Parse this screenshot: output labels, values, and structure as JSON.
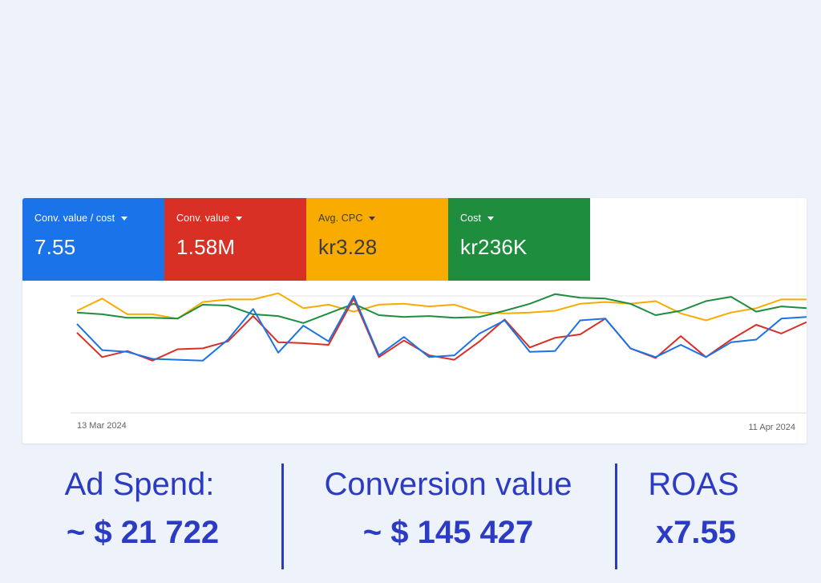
{
  "metrics": [
    {
      "label": "Conv. value / cost",
      "value": "7.55",
      "color": "#1a73e8"
    },
    {
      "label": "Conv. value",
      "value": "1.58M",
      "color": "#d93025"
    },
    {
      "label": "Avg. CPC",
      "value": "kr3.28",
      "color": "#f9ab00"
    },
    {
      "label": "Cost",
      "value": "kr236K",
      "color": "#1e8e3e"
    }
  ],
  "chart_data": {
    "type": "line",
    "title": "",
    "x_start_label": "13 Mar 2024",
    "x_end_label": "11 Apr 2024",
    "x": [
      1,
      2,
      3,
      4,
      5,
      6,
      7,
      8,
      9,
      10,
      11,
      12,
      13,
      14,
      15,
      16,
      17,
      18,
      19,
      20,
      21,
      22,
      23,
      24,
      25,
      26,
      27,
      28,
      29,
      30
    ],
    "ylim": [
      0,
      100
    ],
    "grid": true,
    "series": [
      {
        "name": "Conv. value / cost",
        "color": "#1a73e8",
        "values": [
          68,
          38,
          36,
          28,
          27,
          26,
          50,
          85,
          35,
          66,
          48,
          100,
          32,
          53,
          30,
          32,
          57,
          72,
          36,
          37,
          72,
          74,
          40,
          30,
          44,
          30,
          47,
          50,
          74,
          76
        ]
      },
      {
        "name": "Conv. value",
        "color": "#d93025",
        "values": [
          58,
          30,
          37,
          26,
          39,
          40,
          48,
          77,
          47,
          46,
          44,
          97,
          30,
          49,
          32,
          27,
          48,
          73,
          41,
          52,
          56,
          74,
          40,
          29,
          54,
          30,
          50,
          67,
          57,
          70
        ]
      },
      {
        "name": "Avg. CPC",
        "color": "#f9ab00",
        "values": [
          83,
          97,
          79,
          79,
          74,
          93,
          96,
          96,
          103,
          86,
          90,
          82,
          90,
          91,
          88,
          90,
          81,
          80,
          81,
          83,
          91,
          93,
          91,
          94,
          80,
          72,
          81,
          86,
          96,
          96
        ]
      },
      {
        "name": "Cost",
        "color": "#1e8e3e",
        "values": [
          81,
          79,
          75,
          75,
          74,
          90,
          89,
          79,
          77,
          69,
          80,
          91,
          78,
          76,
          77,
          75,
          76,
          83,
          91,
          102,
          98,
          97,
          91,
          78,
          83,
          94,
          99,
          82,
          88,
          86
        ]
      }
    ]
  },
  "stats": [
    {
      "label": "Ad Spend:",
      "value": "~ $ 21 722"
    },
    {
      "label": "Conversion value",
      "value": "~ $ 145 427"
    },
    {
      "label": "ROAS",
      "value": "x7.55"
    }
  ]
}
